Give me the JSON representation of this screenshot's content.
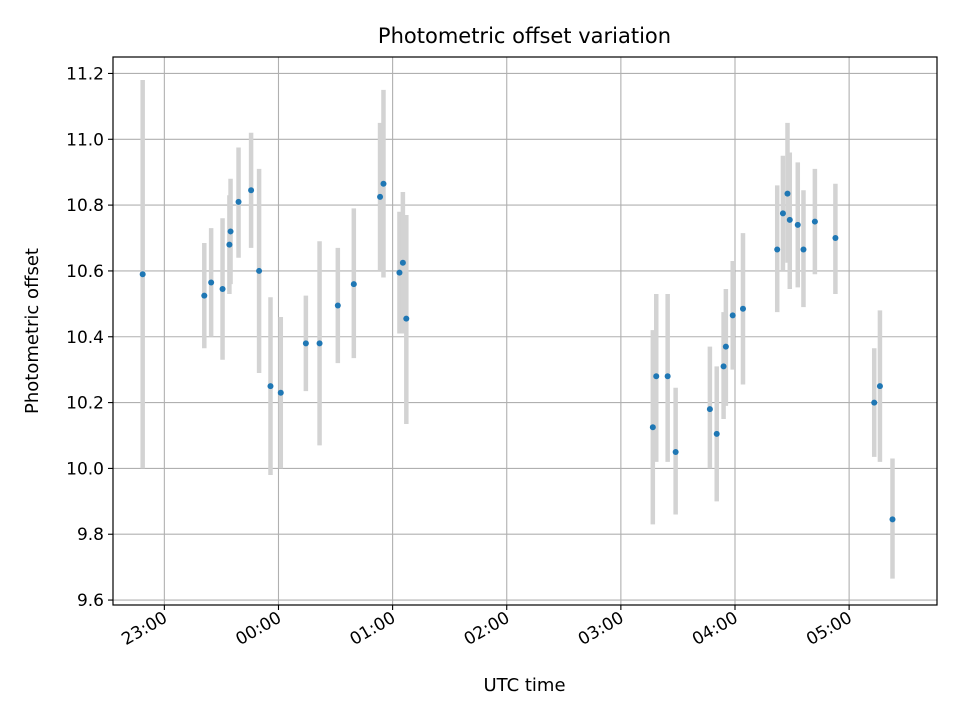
{
  "chart_data": {
    "type": "scatter",
    "title": "Photometric offset variation",
    "xlabel": "UTC time",
    "ylabel": "Photometric offset",
    "x_unit": "hours since 00:00 UTC",
    "xlim": [
      -1.45,
      5.77
    ],
    "ylim": [
      9.585,
      11.25
    ],
    "grid": true,
    "x_ticks": [
      {
        "value": -1,
        "label": "23:00"
      },
      {
        "value": 0,
        "label": "00:00"
      },
      {
        "value": 1,
        "label": "01:00"
      },
      {
        "value": 2,
        "label": "02:00"
      },
      {
        "value": 3,
        "label": "03:00"
      },
      {
        "value": 4,
        "label": "04:00"
      },
      {
        "value": 5,
        "label": "05:00"
      }
    ],
    "y_ticks": [
      {
        "value": 9.6,
        "label": "9.6"
      },
      {
        "value": 9.8,
        "label": "9.8"
      },
      {
        "value": 10.0,
        "label": "10.0"
      },
      {
        "value": 10.2,
        "label": "10.2"
      },
      {
        "value": 10.4,
        "label": "10.4"
      },
      {
        "value": 10.6,
        "label": "10.6"
      },
      {
        "value": 10.8,
        "label": "10.8"
      },
      {
        "value": 11.0,
        "label": "11.0"
      },
      {
        "value": 11.2,
        "label": "11.2"
      }
    ],
    "point_color": "#1f77b4",
    "errorbar_color": "#d3d3d3",
    "series": [
      {
        "name": "photometric offset",
        "points": [
          {
            "x": -1.19,
            "y": 10.59,
            "ylo": 10.0,
            "yhi": 11.18
          },
          {
            "x": -0.65,
            "y": 10.525,
            "ylo": 10.365,
            "yhi": 10.685
          },
          {
            "x": -0.59,
            "y": 10.565,
            "ylo": 10.4,
            "yhi": 10.73
          },
          {
            "x": -0.49,
            "y": 10.545,
            "ylo": 10.33,
            "yhi": 10.76
          },
          {
            "x": -0.43,
            "y": 10.68,
            "ylo": 10.53,
            "yhi": 10.83
          },
          {
            "x": -0.42,
            "y": 10.72,
            "ylo": 10.56,
            "yhi": 10.88
          },
          {
            "x": -0.35,
            "y": 10.81,
            "ylo": 10.64,
            "yhi": 10.975
          },
          {
            "x": -0.24,
            "y": 10.845,
            "ylo": 10.67,
            "yhi": 11.02
          },
          {
            "x": -0.17,
            "y": 10.6,
            "ylo": 10.29,
            "yhi": 10.91
          },
          {
            "x": -0.07,
            "y": 10.25,
            "ylo": 9.98,
            "yhi": 10.52
          },
          {
            "x": 0.02,
            "y": 10.23,
            "ylo": 10.0,
            "yhi": 10.46
          },
          {
            "x": 0.24,
            "y": 10.38,
            "ylo": 10.235,
            "yhi": 10.525
          },
          {
            "x": 0.36,
            "y": 10.38,
            "ylo": 10.07,
            "yhi": 10.69
          },
          {
            "x": 0.52,
            "y": 10.495,
            "ylo": 10.32,
            "yhi": 10.67
          },
          {
            "x": 0.66,
            "y": 10.56,
            "ylo": 10.335,
            "yhi": 10.79
          },
          {
            "x": 0.89,
            "y": 10.825,
            "ylo": 10.6,
            "yhi": 11.05
          },
          {
            "x": 0.92,
            "y": 10.865,
            "ylo": 10.58,
            "yhi": 11.15
          },
          {
            "x": 1.06,
            "y": 10.595,
            "ylo": 10.41,
            "yhi": 10.78
          },
          {
            "x": 1.09,
            "y": 10.625,
            "ylo": 10.41,
            "yhi": 10.84
          },
          {
            "x": 1.12,
            "y": 10.455,
            "ylo": 10.135,
            "yhi": 10.77
          },
          {
            "x": 3.28,
            "y": 10.125,
            "ylo": 9.83,
            "yhi": 10.42
          },
          {
            "x": 3.31,
            "y": 10.28,
            "ylo": 10.02,
            "yhi": 10.53
          },
          {
            "x": 3.41,
            "y": 10.28,
            "ylo": 10.02,
            "yhi": 10.53
          },
          {
            "x": 3.48,
            "y": 10.05,
            "ylo": 9.86,
            "yhi": 10.245
          },
          {
            "x": 3.78,
            "y": 10.18,
            "ylo": 10.0,
            "yhi": 10.37
          },
          {
            "x": 3.84,
            "y": 10.105,
            "ylo": 9.9,
            "yhi": 10.31
          },
          {
            "x": 3.9,
            "y": 10.31,
            "ylo": 10.15,
            "yhi": 10.475
          },
          {
            "x": 3.92,
            "y": 10.37,
            "ylo": 10.19,
            "yhi": 10.545
          },
          {
            "x": 3.98,
            "y": 10.465,
            "ylo": 10.3,
            "yhi": 10.63
          },
          {
            "x": 4.07,
            "y": 10.485,
            "ylo": 10.255,
            "yhi": 10.715
          },
          {
            "x": 4.37,
            "y": 10.665,
            "ylo": 10.475,
            "yhi": 10.86
          },
          {
            "x": 4.42,
            "y": 10.775,
            "ylo": 10.6,
            "yhi": 10.95
          },
          {
            "x": 4.46,
            "y": 10.835,
            "ylo": 10.625,
            "yhi": 11.05
          },
          {
            "x": 4.48,
            "y": 10.755,
            "ylo": 10.545,
            "yhi": 10.96
          },
          {
            "x": 4.55,
            "y": 10.74,
            "ylo": 10.55,
            "yhi": 10.93
          },
          {
            "x": 4.6,
            "y": 10.665,
            "ylo": 10.49,
            "yhi": 10.845
          },
          {
            "x": 4.7,
            "y": 10.75,
            "ylo": 10.59,
            "yhi": 10.91
          },
          {
            "x": 4.88,
            "y": 10.7,
            "ylo": 10.53,
            "yhi": 10.865
          },
          {
            "x": 5.22,
            "y": 10.2,
            "ylo": 10.035,
            "yhi": 10.365
          },
          {
            "x": 5.27,
            "y": 10.25,
            "ylo": 10.02,
            "yhi": 10.48
          },
          {
            "x": 5.38,
            "y": 9.845,
            "ylo": 9.665,
            "yhi": 10.03
          }
        ]
      }
    ]
  }
}
